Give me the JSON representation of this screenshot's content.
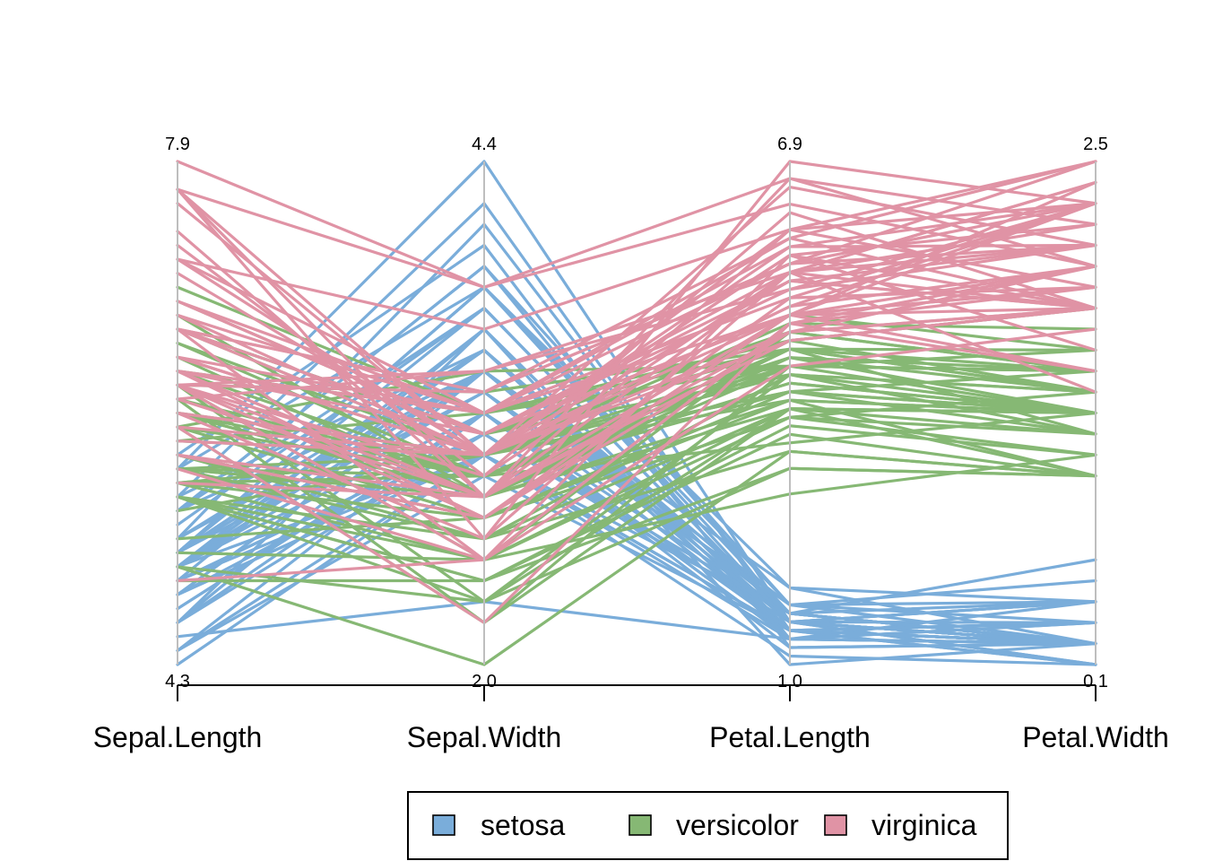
{
  "chart_data": {
    "type": "parallel-coordinates",
    "title": "",
    "axes": [
      {
        "name": "Sepal.Length",
        "min": 4.3,
        "max": 7.9,
        "min_label": "4.3",
        "max_label": "7.9"
      },
      {
        "name": "Sepal.Width",
        "min": 2.0,
        "max": 4.4,
        "min_label": "2.0",
        "max_label": "4.4"
      },
      {
        "name": "Petal.Length",
        "min": 1.0,
        "max": 6.9,
        "min_label": "1.0",
        "max_label": "6.9"
      },
      {
        "name": "Petal.Width",
        "min": 0.1,
        "max": 2.5,
        "min_label": "0.1",
        "max_label": "2.5"
      }
    ],
    "legend": {
      "placement": "bottom",
      "items": [
        {
          "label": "setosa",
          "color": "#7aadda"
        },
        {
          "label": "versicolor",
          "color": "#86b874"
        },
        {
          "label": "virginica",
          "color": "#e093a5"
        }
      ]
    },
    "series": [
      {
        "name": "setosa",
        "color": "#7aadda",
        "rows": [
          [
            5.1,
            3.5,
            1.4,
            0.2
          ],
          [
            4.9,
            3.0,
            1.4,
            0.2
          ],
          [
            4.7,
            3.2,
            1.3,
            0.2
          ],
          [
            4.6,
            3.1,
            1.5,
            0.2
          ],
          [
            5.0,
            3.6,
            1.4,
            0.2
          ],
          [
            5.4,
            3.9,
            1.7,
            0.4
          ],
          [
            4.6,
            3.4,
            1.4,
            0.3
          ],
          [
            5.0,
            3.4,
            1.5,
            0.2
          ],
          [
            4.4,
            2.9,
            1.4,
            0.2
          ],
          [
            4.9,
            3.1,
            1.5,
            0.1
          ],
          [
            5.4,
            3.7,
            1.5,
            0.2
          ],
          [
            4.8,
            3.4,
            1.6,
            0.2
          ],
          [
            4.8,
            3.0,
            1.4,
            0.1
          ],
          [
            4.3,
            3.0,
            1.1,
            0.1
          ],
          [
            5.8,
            4.0,
            1.2,
            0.2
          ],
          [
            5.7,
            4.4,
            1.5,
            0.4
          ],
          [
            5.4,
            3.9,
            1.3,
            0.4
          ],
          [
            5.1,
            3.5,
            1.4,
            0.3
          ],
          [
            5.7,
            3.8,
            1.7,
            0.3
          ],
          [
            5.1,
            3.8,
            1.5,
            0.3
          ],
          [
            5.4,
            3.4,
            1.7,
            0.2
          ],
          [
            5.1,
            3.7,
            1.5,
            0.4
          ],
          [
            4.6,
            3.6,
            1.0,
            0.2
          ],
          [
            5.1,
            3.3,
            1.7,
            0.5
          ],
          [
            4.8,
            3.4,
            1.9,
            0.2
          ],
          [
            5.0,
            3.0,
            1.6,
            0.2
          ],
          [
            5.0,
            3.4,
            1.6,
            0.4
          ],
          [
            5.2,
            3.5,
            1.5,
            0.2
          ],
          [
            5.2,
            3.4,
            1.4,
            0.2
          ],
          [
            4.7,
            3.2,
            1.6,
            0.2
          ],
          [
            4.8,
            3.1,
            1.6,
            0.2
          ],
          [
            5.4,
            3.4,
            1.5,
            0.4
          ],
          [
            5.2,
            4.1,
            1.5,
            0.1
          ],
          [
            5.5,
            4.2,
            1.4,
            0.2
          ],
          [
            4.9,
            3.1,
            1.5,
            0.2
          ],
          [
            5.0,
            3.2,
            1.2,
            0.2
          ],
          [
            5.5,
            3.5,
            1.3,
            0.2
          ],
          [
            4.9,
            3.6,
            1.4,
            0.1
          ],
          [
            4.4,
            3.0,
            1.3,
            0.2
          ],
          [
            5.1,
            3.4,
            1.5,
            0.2
          ],
          [
            5.0,
            3.5,
            1.3,
            0.3
          ],
          [
            4.5,
            2.3,
            1.3,
            0.3
          ],
          [
            4.4,
            3.2,
            1.3,
            0.2
          ],
          [
            5.0,
            3.5,
            1.6,
            0.6
          ],
          [
            5.1,
            3.8,
            1.9,
            0.4
          ],
          [
            4.8,
            3.0,
            1.4,
            0.3
          ],
          [
            5.1,
            3.8,
            1.6,
            0.2
          ],
          [
            4.6,
            3.2,
            1.4,
            0.2
          ],
          [
            5.3,
            3.7,
            1.5,
            0.2
          ],
          [
            5.0,
            3.3,
            1.4,
            0.2
          ]
        ]
      },
      {
        "name": "versicolor",
        "color": "#86b874",
        "rows": [
          [
            7.0,
            3.2,
            4.7,
            1.4
          ],
          [
            6.4,
            3.2,
            4.5,
            1.5
          ],
          [
            6.9,
            3.1,
            4.9,
            1.5
          ],
          [
            5.5,
            2.3,
            4.0,
            1.3
          ],
          [
            6.5,
            2.8,
            4.6,
            1.5
          ],
          [
            5.7,
            2.8,
            4.5,
            1.3
          ],
          [
            6.3,
            3.3,
            4.7,
            1.6
          ],
          [
            4.9,
            2.4,
            3.3,
            1.0
          ],
          [
            6.6,
            2.9,
            4.6,
            1.3
          ],
          [
            5.2,
            2.7,
            3.9,
            1.4
          ],
          [
            5.0,
            2.0,
            3.5,
            1.0
          ],
          [
            5.9,
            3.0,
            4.2,
            1.5
          ],
          [
            6.0,
            2.2,
            4.0,
            1.0
          ],
          [
            6.1,
            2.9,
            4.7,
            1.4
          ],
          [
            5.6,
            2.9,
            3.6,
            1.3
          ],
          [
            6.7,
            3.1,
            4.4,
            1.4
          ],
          [
            5.6,
            3.0,
            4.5,
            1.5
          ],
          [
            5.8,
            2.7,
            4.1,
            1.0
          ],
          [
            6.2,
            2.2,
            4.5,
            1.5
          ],
          [
            5.6,
            2.5,
            3.9,
            1.1
          ],
          [
            5.9,
            3.2,
            4.8,
            1.8
          ],
          [
            6.1,
            2.8,
            4.0,
            1.3
          ],
          [
            6.3,
            2.5,
            4.9,
            1.5
          ],
          [
            6.1,
            2.8,
            4.7,
            1.2
          ],
          [
            6.4,
            2.9,
            4.3,
            1.3
          ],
          [
            6.6,
            3.0,
            4.4,
            1.4
          ],
          [
            6.8,
            2.8,
            4.8,
            1.4
          ],
          [
            6.7,
            3.0,
            5.0,
            1.7
          ],
          [
            6.0,
            2.9,
            4.5,
            1.5
          ],
          [
            5.7,
            2.6,
            3.5,
            1.0
          ],
          [
            5.5,
            2.4,
            3.8,
            1.1
          ],
          [
            5.5,
            2.4,
            3.7,
            1.0
          ],
          [
            5.8,
            2.7,
            3.9,
            1.2
          ],
          [
            6.0,
            2.7,
            5.1,
            1.6
          ],
          [
            5.4,
            3.0,
            4.5,
            1.5
          ],
          [
            6.0,
            3.4,
            4.5,
            1.6
          ],
          [
            6.7,
            3.1,
            4.7,
            1.5
          ],
          [
            6.3,
            2.3,
            4.4,
            1.3
          ],
          [
            5.6,
            3.0,
            4.1,
            1.3
          ],
          [
            5.5,
            2.5,
            4.0,
            1.3
          ],
          [
            5.5,
            2.6,
            4.4,
            1.2
          ],
          [
            6.1,
            3.0,
            4.6,
            1.4
          ],
          [
            5.8,
            2.6,
            4.0,
            1.2
          ],
          [
            5.0,
            2.3,
            3.3,
            1.0
          ],
          [
            5.6,
            2.7,
            4.2,
            1.3
          ],
          [
            5.7,
            3.0,
            4.2,
            1.2
          ],
          [
            5.7,
            2.9,
            4.2,
            1.3
          ],
          [
            6.2,
            2.9,
            4.3,
            1.3
          ],
          [
            5.1,
            2.5,
            3.0,
            1.1
          ],
          [
            5.7,
            2.8,
            4.1,
            1.3
          ]
        ]
      },
      {
        "name": "virginica",
        "color": "#e093a5",
        "rows": [
          [
            6.3,
            3.3,
            6.0,
            2.5
          ],
          [
            5.8,
            2.7,
            5.1,
            1.9
          ],
          [
            7.1,
            3.0,
            5.9,
            2.1
          ],
          [
            6.3,
            2.9,
            5.6,
            1.8
          ],
          [
            6.5,
            3.0,
            5.8,
            2.2
          ],
          [
            7.6,
            3.0,
            6.6,
            2.1
          ],
          [
            4.9,
            2.5,
            4.5,
            1.7
          ],
          [
            7.3,
            2.9,
            6.3,
            1.8
          ],
          [
            6.7,
            2.5,
            5.8,
            1.8
          ],
          [
            7.2,
            3.6,
            6.1,
            2.5
          ],
          [
            6.5,
            3.2,
            5.1,
            2.0
          ],
          [
            6.4,
            2.7,
            5.3,
            1.9
          ],
          [
            6.8,
            3.0,
            5.5,
            2.1
          ],
          [
            5.7,
            2.5,
            5.0,
            2.0
          ],
          [
            5.8,
            2.8,
            5.1,
            2.4
          ],
          [
            6.4,
            3.2,
            5.3,
            2.3
          ],
          [
            6.5,
            3.0,
            5.5,
            1.8
          ],
          [
            7.7,
            3.8,
            6.7,
            2.2
          ],
          [
            7.7,
            2.6,
            6.9,
            2.3
          ],
          [
            6.0,
            2.2,
            5.0,
            1.5
          ],
          [
            6.9,
            3.2,
            5.7,
            2.3
          ],
          [
            5.6,
            2.8,
            4.9,
            2.0
          ],
          [
            7.7,
            2.8,
            6.7,
            2.0
          ],
          [
            6.3,
            2.7,
            4.9,
            1.8
          ],
          [
            6.7,
            3.3,
            5.7,
            2.1
          ],
          [
            7.2,
            3.2,
            6.0,
            1.8
          ],
          [
            6.2,
            2.8,
            4.8,
            1.8
          ],
          [
            6.1,
            3.0,
            4.9,
            1.8
          ],
          [
            6.4,
            2.8,
            5.6,
            2.1
          ],
          [
            7.2,
            3.0,
            5.8,
            1.6
          ],
          [
            7.4,
            2.8,
            6.1,
            1.9
          ],
          [
            7.9,
            3.8,
            6.4,
            2.0
          ],
          [
            6.4,
            2.8,
            5.6,
            2.2
          ],
          [
            6.3,
            2.8,
            5.1,
            1.5
          ],
          [
            6.1,
            2.6,
            5.6,
            1.4
          ],
          [
            7.7,
            3.0,
            6.1,
            2.3
          ],
          [
            6.3,
            3.4,
            5.6,
            2.4
          ],
          [
            6.4,
            3.1,
            5.5,
            1.8
          ],
          [
            6.0,
            3.0,
            4.8,
            1.8
          ],
          [
            6.9,
            3.1,
            5.4,
            2.1
          ],
          [
            6.7,
            3.1,
            5.6,
            2.4
          ],
          [
            6.9,
            3.1,
            5.1,
            2.3
          ],
          [
            5.8,
            2.7,
            5.1,
            1.9
          ],
          [
            6.8,
            3.2,
            5.9,
            2.3
          ],
          [
            6.7,
            3.3,
            5.7,
            2.5
          ],
          [
            6.7,
            3.0,
            5.2,
            2.3
          ],
          [
            6.3,
            2.5,
            5.0,
            1.9
          ],
          [
            6.5,
            3.0,
            5.2,
            2.0
          ],
          [
            6.2,
            3.4,
            5.4,
            2.3
          ],
          [
            5.9,
            3.0,
            5.1,
            1.8
          ]
        ]
      }
    ]
  }
}
